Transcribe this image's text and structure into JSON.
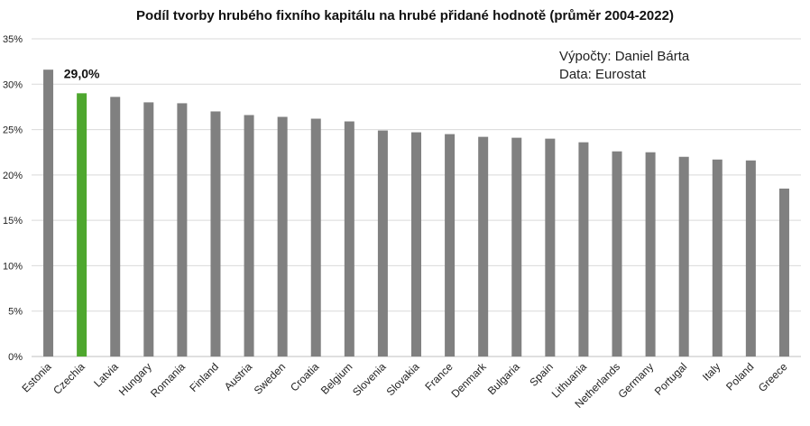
{
  "chart_data": {
    "type": "bar",
    "title": "Podíl tvorby hrubého fixního kapitálu na hrubé přidané hodnotě (průměr 2004-2022)",
    "xlabel": "",
    "ylabel": "",
    "ylim": [
      0,
      35
    ],
    "yticks": [
      "0%",
      "5%",
      "10%",
      "15%",
      "20%",
      "25%",
      "30%",
      "35%"
    ],
    "ytick_values": [
      0,
      5,
      10,
      15,
      20,
      25,
      30,
      35
    ],
    "grid": true,
    "categories": [
      "Estonia",
      "Czechia",
      "Latvia",
      "Hungary",
      "Romania",
      "Finland",
      "Austria",
      "Sweden",
      "Croatia",
      "Belgium",
      "Slovenia",
      "Slovakia",
      "France",
      "Denmark",
      "Bulgaria",
      "Spain",
      "Lithuania",
      "Netherlands",
      "Germany",
      "Portugal",
      "Italy",
      "Poland",
      "Greece"
    ],
    "values": [
      31.6,
      29.0,
      28.6,
      28.0,
      27.9,
      27.0,
      26.6,
      26.4,
      26.2,
      25.9,
      24.9,
      24.7,
      24.5,
      24.2,
      24.1,
      24.0,
      23.6,
      22.6,
      22.5,
      22.0,
      21.7,
      21.6,
      18.5
    ],
    "highlight_index": 1,
    "highlight_label": "29,0%",
    "colors": {
      "bar": "#808080",
      "highlight": "#4ea72e",
      "grid": "#d9d9d9",
      "axis": "#bfbfbf"
    },
    "annotations": [
      "Výpočty: Daniel Bárta",
      "Data: Eurostat"
    ]
  }
}
